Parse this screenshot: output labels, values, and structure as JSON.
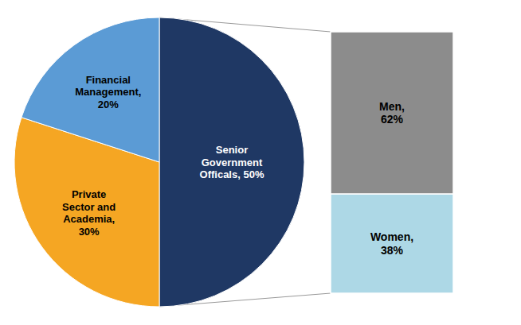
{
  "chart_data": [
    {
      "type": "pie",
      "values": [
        50,
        30,
        20
      ],
      "value_labels": [
        "Senior\nGovernment\nOfficals, 50%",
        "Private\nSector and\nAcademia,\n30%",
        "Financial\nManagement,\n20%"
      ],
      "colors": [
        "#1F3864",
        "#F5A623",
        "#5B9BD5"
      ],
      "data_labels": true
    },
    {
      "type": "bar",
      "stacked": true,
      "categories": [
        null
      ],
      "ylim": [
        0,
        100
      ],
      "tick_labels": false,
      "data_labels": true,
      "series": [
        {
          "color": "#8C8C8C",
          "values": [
            62
          ],
          "value_labels": [
            "Men,\n62%"
          ]
        },
        {
          "color": "#ADD8E6",
          "values": [
            38
          ],
          "value_labels": [
            "Women,\n38%"
          ]
        }
      ]
    }
  ]
}
